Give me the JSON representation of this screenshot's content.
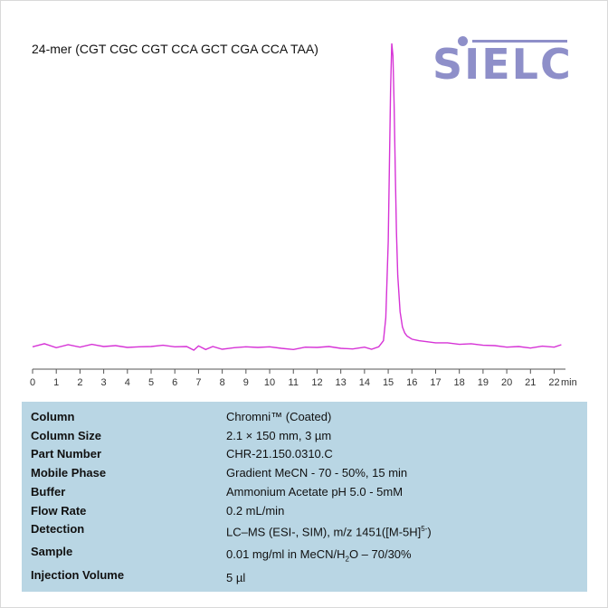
{
  "title": "24-mer (CGT CGC CGT CCA GCT CGA CCA TAA)",
  "logo": {
    "text": "SIELC",
    "color": "#8e8fc9"
  },
  "chart_data": {
    "type": "line",
    "title": "24-mer (CGT CGC CGT CCA GCT CGA CCA TAA)",
    "xlabel": "min",
    "ylabel": "",
    "xlim": [
      0,
      22.3
    ],
    "x_ticks": [
      "0",
      "1",
      "2",
      "3",
      "4",
      "5",
      "6",
      "7",
      "8",
      "9",
      "10",
      "11",
      "12",
      "13",
      "14",
      "15",
      "16",
      "17",
      "18",
      "19",
      "20",
      "21",
      "22"
    ],
    "grid": false,
    "line_color": "#d633d6",
    "series": [
      {
        "x": [
          0,
          0.5,
          1,
          1.5,
          2,
          2.5,
          3,
          3.5,
          4,
          4.5,
          5,
          5.5,
          6,
          6.5,
          6.8,
          7,
          7.3,
          7.6,
          8,
          8.5,
          9,
          9.5,
          10,
          10.5,
          11,
          11.5,
          12,
          12.5,
          13,
          13.5,
          14,
          14.3,
          14.6,
          14.8,
          14.9,
          15.0,
          15.05,
          15.1,
          15.15,
          15.2,
          15.25,
          15.3,
          15.35,
          15.4,
          15.5,
          15.6,
          15.7,
          15.8,
          16.0,
          16.3,
          16.6,
          17,
          17.5,
          18,
          18.5,
          19,
          19.5,
          20,
          20.5,
          21,
          21.5,
          22,
          22.3
        ],
        "y": [
          0.5,
          1.5,
          0.2,
          1.2,
          0.4,
          1.3,
          0.6,
          0.9,
          0.3,
          0.5,
          0.6,
          1.0,
          0.5,
          0.6,
          -0.6,
          0.8,
          -0.4,
          0.6,
          -0.3,
          0.2,
          0.5,
          0.3,
          0.5,
          0.0,
          -0.4,
          0.4,
          0.3,
          0.6,
          0.0,
          -0.2,
          0.4,
          -0.3,
          0.5,
          2.5,
          10,
          35,
          60,
          85,
          100,
          96,
          80,
          58,
          38,
          24,
          12,
          7,
          5,
          4,
          3,
          2.5,
          2.2,
          1.8,
          1.8,
          1.3,
          1.5,
          1.0,
          0.9,
          0.4,
          0.6,
          0.1,
          0.7,
          0.4,
          1.2
        ]
      }
    ],
    "ylim": [
      -3,
      105
    ]
  },
  "table": {
    "rows": [
      {
        "label": "Column",
        "value": "Chromni™ (Coated)"
      },
      {
        "label": "Column Size",
        "value": "2.1 × 150 mm, 3 µm"
      },
      {
        "label": "Part Number",
        "value": "CHR-21.150.0310.C"
      },
      {
        "label": "Mobile Phase",
        "value": "Gradient MeCN - 70 - 50%, 15 min"
      },
      {
        "label": "Buffer",
        "value": "Ammonium Acetate pH 5.0  - 5mM"
      },
      {
        "label": "Flow Rate",
        "value": "0.2 mL/min"
      },
      {
        "label": "Detection",
        "value_pre": "LC–MS (ESI-, SIM), m/z 1451([M-5H]",
        "value_sup": "5-",
        "value_post": ")"
      },
      {
        "label": "Sample",
        "value_pre": "0.01 mg/ml in MeCN/H",
        "value_sub": "2",
        "value_post": "O – 70/30%"
      },
      {
        "label": "Injection Volume",
        "value": "5 µl"
      }
    ]
  }
}
